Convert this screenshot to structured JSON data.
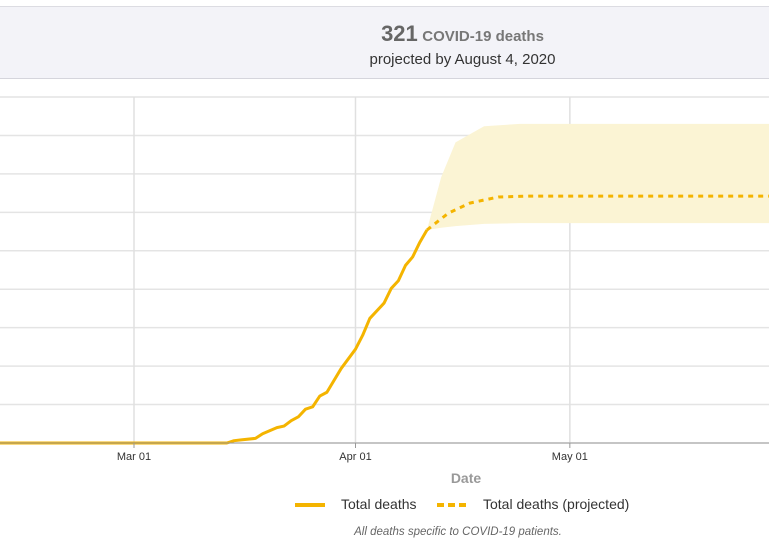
{
  "header": {
    "count": "321",
    "count_label": "COVID-19 deaths",
    "subtitle": "projected by August 4, 2020"
  },
  "footnote": "All deaths specific to COVID-19 patients.",
  "chart_data": {
    "type": "line",
    "xlabel": "Date",
    "ylabel": "",
    "x_ticks": [
      "Mar 01",
      "Apr 01",
      "May 01"
    ],
    "xlim": [
      "2020-02-11",
      "2020-05-29"
    ],
    "ylim": [
      0,
      450
    ],
    "grid": true,
    "y_tick_labels_visible": false,
    "legend": "bottom",
    "colors": {
      "line": "#f4b400",
      "band": "#fbf4d4",
      "grid": "#e4e4e4",
      "header_bg": "#f3f3f8"
    },
    "series": [
      {
        "name": "Total deaths",
        "style": "solid",
        "points": [
          [
            "2020-02-11",
            0
          ],
          [
            "2020-03-14",
            0
          ],
          [
            "2020-03-15",
            3
          ],
          [
            "2020-03-16",
            4
          ],
          [
            "2020-03-18",
            6
          ],
          [
            "2020-03-19",
            12
          ],
          [
            "2020-03-21",
            20
          ],
          [
            "2020-03-22",
            22
          ],
          [
            "2020-03-23",
            29
          ],
          [
            "2020-03-24",
            34
          ],
          [
            "2020-03-25",
            44
          ],
          [
            "2020-03-26",
            47
          ],
          [
            "2020-03-27",
            61
          ],
          [
            "2020-03-28",
            66
          ],
          [
            "2020-03-30",
            97
          ],
          [
            "2020-04-01",
            122
          ],
          [
            "2020-04-02",
            140
          ],
          [
            "2020-04-03",
            162
          ],
          [
            "2020-04-05",
            182
          ],
          [
            "2020-04-06",
            201
          ],
          [
            "2020-04-07",
            211
          ],
          [
            "2020-04-08",
            231
          ],
          [
            "2020-04-09",
            242
          ],
          [
            "2020-04-10",
            261
          ],
          [
            "2020-04-11",
            277
          ]
        ]
      },
      {
        "name": "Total deaths (projected)",
        "style": "dashed",
        "points": [
          [
            "2020-04-11",
            277
          ],
          [
            "2020-04-14",
            299
          ],
          [
            "2020-04-17",
            312
          ],
          [
            "2020-04-21",
            320
          ],
          [
            "2020-04-25",
            321
          ],
          [
            "2020-05-29",
            321
          ]
        ]
      }
    ],
    "uncertainty_band": {
      "points": [
        [
          "2020-04-11",
          277,
          277
        ],
        [
          "2020-04-13",
          280,
          346
        ],
        [
          "2020-04-15",
          282,
          391
        ],
        [
          "2020-04-19",
          285,
          412
        ],
        [
          "2020-04-24",
          286,
          415
        ],
        [
          "2020-05-29",
          286,
          415
        ]
      ]
    }
  }
}
